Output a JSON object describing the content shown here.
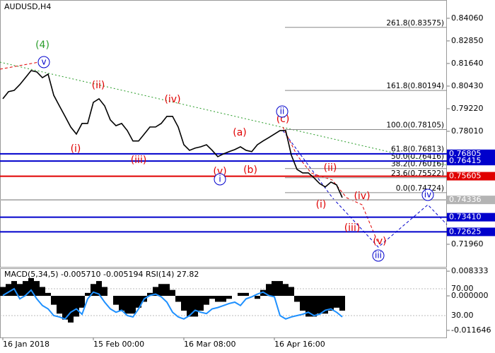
{
  "chart_data": [
    {
      "type": "line",
      "title": "AUDUSD,H4",
      "categories": [
        "16 Jan 2018",
        null,
        null,
        null,
        null,
        null,
        null,
        null,
        null,
        null,
        null,
        null,
        null,
        null,
        null,
        null,
        "15 Feb 00:00",
        null,
        null,
        null,
        null,
        null,
        null,
        null,
        null,
        null,
        null,
        null,
        null,
        null,
        null,
        null,
        "16 Mar 08:00",
        null,
        null,
        null,
        null,
        null,
        null,
        null,
        null,
        null,
        null,
        null,
        null,
        null,
        null,
        null,
        "16 Apr 16:00",
        null,
        null,
        null,
        null,
        null,
        null,
        null,
        null,
        null,
        null,
        null,
        null
      ],
      "values": [
        0.7975,
        0.8013,
        0.802,
        0.8051,
        0.8088,
        0.8126,
        0.8119,
        0.8088,
        0.8107,
        0.7994,
        0.7937,
        0.7881,
        0.7824,
        0.7786,
        0.7843,
        0.7843,
        0.7956,
        0.7975,
        0.7937,
        0.7862,
        0.7831,
        0.7843,
        0.7805,
        0.7749,
        0.7749,
        0.7786,
        0.7824,
        0.7824,
        0.7843,
        0.7881,
        0.7881,
        0.7824,
        0.7729,
        0.7699,
        0.7711,
        0.7718,
        0.7729,
        0.7699,
        0.7665,
        0.768,
        0.7692,
        0.7703,
        0.7718,
        0.7699,
        0.7692,
        0.7729,
        0.7749,
        0.7767,
        0.7786,
        0.7805,
        0.7805,
        0.7673,
        0.7597,
        0.7578,
        0.7578,
        0.7552,
        0.7521,
        0.7503,
        0.7529,
        0.7514,
        0.7446
      ],
      "color": "#000000",
      "ylim": [
        0.7075,
        0.8504
      ],
      "yticks": [
        {
          "value": 0.8406,
          "label": "0.84060"
        },
        {
          "value": 0.8285,
          "label": "0.82850"
        },
        {
          "value": 0.8164,
          "label": "0.81640"
        },
        {
          "value": 0.8043,
          "label": "0.80430"
        },
        {
          "value": 0.7922,
          "label": "0.79220"
        },
        {
          "value": 0.7801,
          "label": "0.78010"
        },
        {
          "value": 0.7196,
          "label": "0.71960"
        }
      ],
      "levels": {
        "values": [
          0.76805,
          0.76415,
          0.75605,
          0.74336,
          0.7341,
          0.72625
        ],
        "value_labels": [
          "0.76805",
          "0.76415",
          "0.75605",
          "0.74336",
          "0.73410",
          "0.72625"
        ],
        "colors": [
          "#0000cc",
          "#0000cc",
          "#e00000",
          "#b4b4b4",
          "#0000cc",
          "#0000cc"
        ]
      },
      "fibonacci": {
        "values": [
          0.83575,
          0.80194,
          0.78105,
          0.76813,
          0.76416,
          0.76016,
          0.75522,
          0.74724
        ],
        "value_labels": [
          "261.8(0.83575)",
          "161.8(0.80194)",
          "100.0(0.78105)",
          "61.8(0.76813)",
          "50.0(0.76416)",
          "38.2(0.76016)",
          "23.6(0.75522)",
          "0.0(0.74724)"
        ],
        "color": "#888888"
      },
      "annotations": [
        "(4)",
        "v",
        "(i)",
        "(ii)",
        "(iii)",
        "(iv)",
        "(v)",
        "i",
        "(a)",
        "(b)",
        "(c)",
        "ii",
        "(i)",
        "(ii)",
        "(iii)",
        "(iv)",
        "(v)",
        "iii",
        "iv"
      ]
    },
    {
      "type": "macd",
      "title": "MACD(5,34,5) -0.005710 -0.005194 RSI(14) 27.82",
      "histogram": {
        "color": "#000000",
        "values": [
          0.003,
          0.004,
          0.005,
          0.004,
          0.005,
          0.006,
          0.005,
          0.003,
          0.001,
          -0.003,
          -0.006,
          -0.008,
          -0.009,
          -0.007,
          -0.004,
          0.001,
          0.004,
          0.005,
          0.003,
          0,
          -0.003,
          -0.005,
          -0.006,
          -0.006,
          -0.004,
          -0.002,
          0.001,
          0.003,
          0.004,
          0.004,
          0.002,
          -0.002,
          -0.005,
          -0.007,
          -0.007,
          -0.005,
          -0.003,
          -0.001,
          -0.002,
          -0.002,
          -0.001,
          0,
          0.001,
          0.001,
          0,
          -0.001,
          0.002,
          0.004,
          0.005,
          0.005,
          0.004,
          0.003,
          -0.002,
          -0.005,
          -0.007,
          -0.007,
          -0.006,
          -0.006,
          -0.005,
          -0.004,
          -0.005
        ]
      },
      "rsi": {
        "color": "#1e90ff",
        "axis": "y2",
        "values": [
          60,
          65,
          70,
          55,
          60,
          68,
          55,
          45,
          40,
          30,
          28,
          25,
          35,
          40,
          32,
          55,
          65,
          62,
          50,
          40,
          35,
          38,
          30,
          28,
          40,
          55,
          60,
          62,
          58,
          50,
          35,
          28,
          25,
          30,
          38,
          35,
          33,
          40,
          42,
          45,
          48,
          50,
          45,
          55,
          58,
          62,
          65,
          60,
          58,
          30,
          25,
          28,
          30,
          32,
          35,
          30,
          32,
          38,
          40,
          35,
          28
        ]
      },
      "ylim": [
        -0.01405,
        0.00931
      ],
      "yticks": [
        {
          "value": 0.008333,
          "label": "0.008333"
        },
        {
          "value": 0,
          "label": "0.000000"
        },
        {
          "value": -0.011646,
          "label": "-0.011646"
        }
      ],
      "y2lim": [
        -2.6,
        100.5
      ],
      "y2ticks": [
        {
          "value": 70,
          "label": "70.00"
        },
        {
          "value": 30,
          "label": "30.00"
        }
      ]
    }
  ]
}
